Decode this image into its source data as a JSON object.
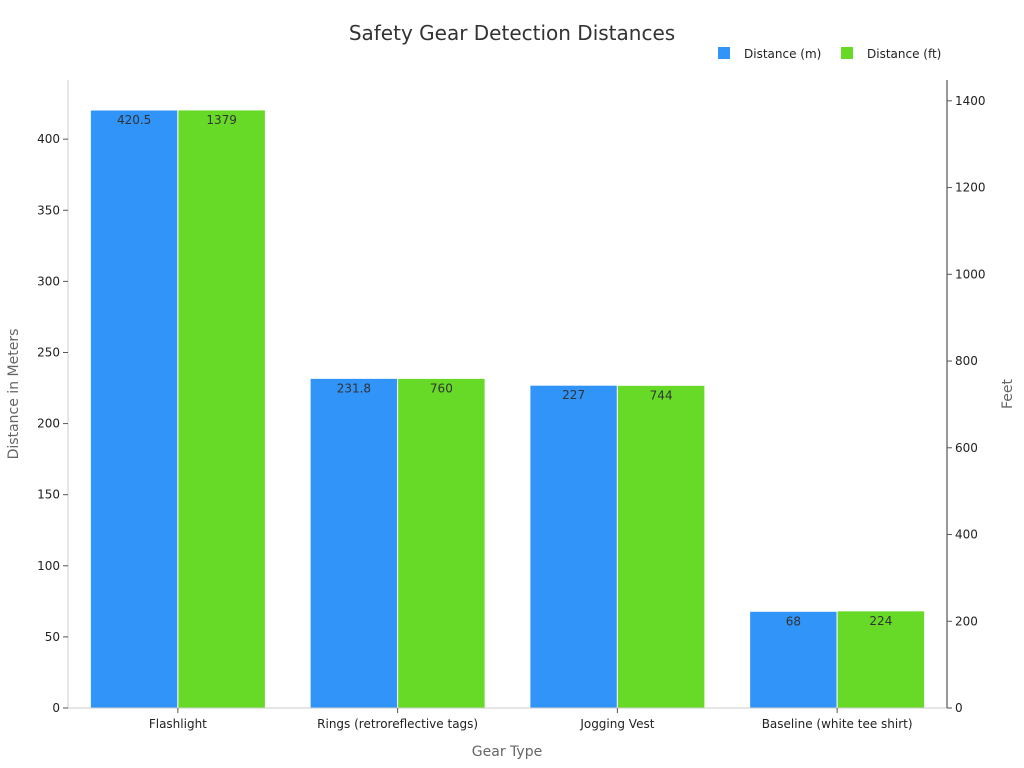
{
  "chart_data": {
    "type": "bar",
    "title": "Safety Gear Detection Distances",
    "categories": [
      "Flashlight",
      "Rings (retroreflective tags)",
      "Jogging Vest",
      "Baseline (white tee shirt)"
    ],
    "series": [
      {
        "name": "Distance (m)",
        "axis": "left",
        "color": "#3094f8",
        "values": [
          420.5,
          231.8,
          227,
          68
        ],
        "labels": [
          "420.5",
          "231.8",
          "227",
          "68"
        ]
      },
      {
        "name": "Distance (ft)",
        "axis": "right",
        "color": "#66da26",
        "values": [
          1379,
          760,
          744,
          224
        ],
        "labels": [
          "1379",
          "760",
          "744",
          "224"
        ]
      }
    ],
    "xlabel": "Gear Type",
    "ylabel": "Distance in Meters",
    "y2label": "Feet",
    "ylim": [
      0,
      441.6
    ],
    "y2lim": [
      0,
      1448
    ],
    "yticks": [
      0,
      50,
      100,
      150,
      200,
      250,
      300,
      350,
      400
    ],
    "y2ticks": [
      0,
      200,
      400,
      600,
      800,
      1000,
      1200,
      1400
    ],
    "legend_position": "top-right",
    "grid": false
  }
}
